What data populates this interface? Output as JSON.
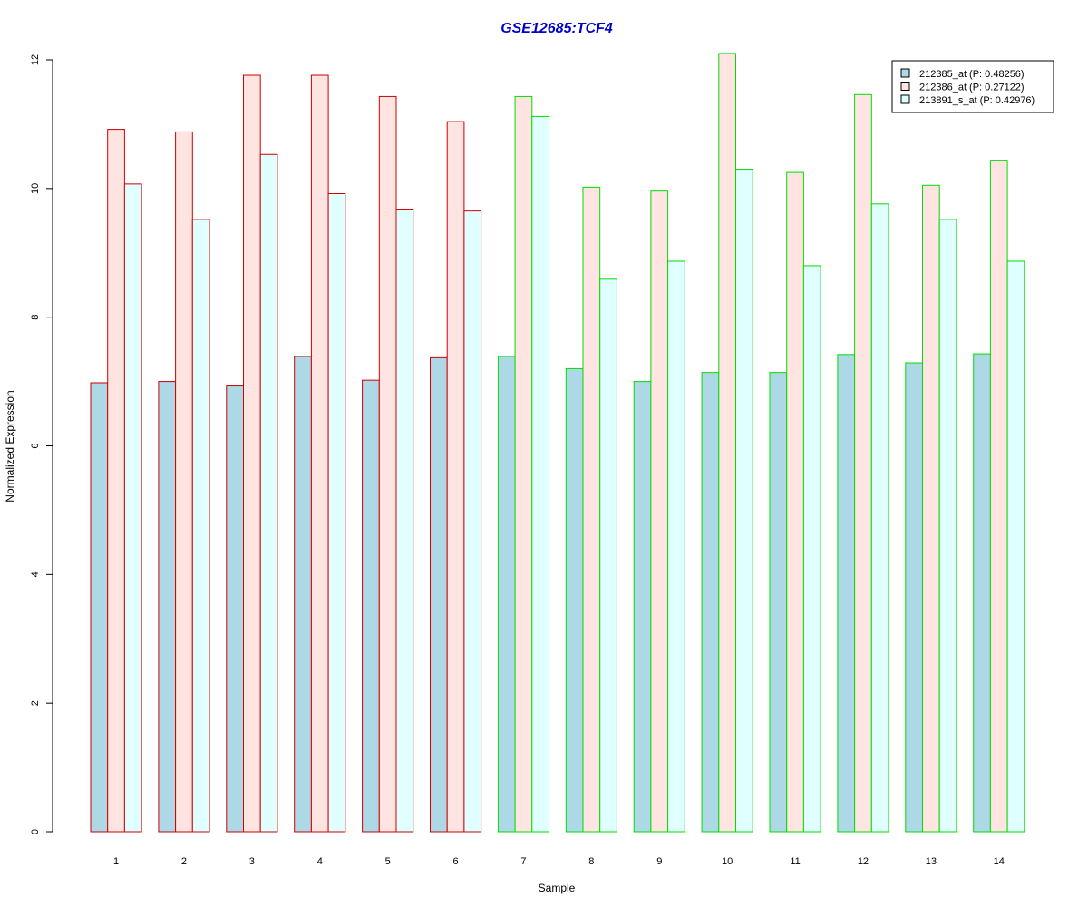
{
  "chart_data": {
    "type": "bar",
    "title": "GSE12685:TCF4",
    "xlabel": "Sample",
    "ylabel": "Normalized Expression",
    "ylim": [
      0,
      12
    ],
    "yticks": [
      0,
      2,
      4,
      6,
      8,
      10,
      12
    ],
    "categories": [
      "1",
      "2",
      "3",
      "4",
      "5",
      "6",
      "7",
      "8",
      "9",
      "10",
      "11",
      "12",
      "13",
      "14"
    ],
    "series": [
      {
        "name": "212385_at (P: 0.48256)",
        "fill": "#add8e6",
        "values": [
          6.98,
          7.0,
          6.93,
          7.39,
          7.02,
          7.37,
          7.39,
          7.2,
          7.0,
          7.14,
          7.14,
          7.42,
          7.29,
          7.43
        ]
      },
      {
        "name": "212386_at (P: 0.27122)",
        "fill": "#ffe4e1",
        "values": [
          10.92,
          10.88,
          11.76,
          11.76,
          11.43,
          11.04,
          11.43,
          10.02,
          9.96,
          12.1,
          10.25,
          11.46,
          10.05,
          10.44
        ]
      },
      {
        "name": "213891_s_at (P: 0.42976)",
        "fill": "#e0ffff",
        "values": [
          10.07,
          9.52,
          10.53,
          9.92,
          9.68,
          9.65,
          11.12,
          8.59,
          8.87,
          10.3,
          8.8,
          9.76,
          9.52,
          8.87
        ]
      }
    ],
    "group_border_colors": [
      "#cc0000",
      "#cc0000",
      "#cc0000",
      "#cc0000",
      "#cc0000",
      "#cc0000",
      "#00dd00",
      "#00dd00",
      "#00dd00",
      "#00dd00",
      "#00dd00",
      "#00dd00",
      "#00dd00",
      "#00dd00"
    ],
    "title_color": "#0000cc",
    "grid": false,
    "legend_position": "top-right"
  }
}
